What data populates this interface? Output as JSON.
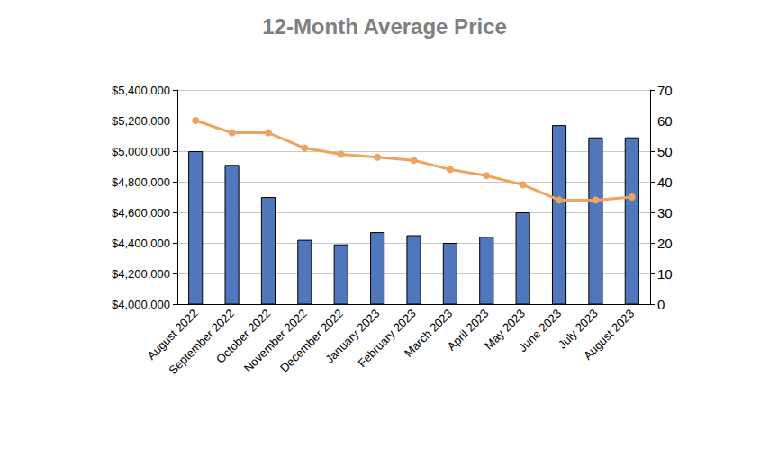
{
  "chart_data": {
    "type": "bar",
    "title": "12-Month Average Price",
    "categories": [
      "August 2022",
      "September 2022",
      "October 2022",
      "November 2022",
      "December 2022",
      "January 2023",
      "February 2023",
      "March 2023",
      "April 2023",
      "May 2023",
      "June 2023",
      "July 2023",
      "August 2023"
    ],
    "series": [
      {
        "type": "bar",
        "color": "#5077bb",
        "values": [
          5000000,
          4910000,
          4700000,
          4420000,
          4390000,
          4470000,
          4450000,
          4400000,
          4440000,
          4600000,
          5170000,
          5090000,
          5090000
        ]
      },
      {
        "type": "line",
        "axis": "y2",
        "color": "#f0a35e",
        "marker": "circle",
        "values": [
          60,
          56,
          56,
          51,
          49,
          48,
          47,
          44,
          42,
          39,
          34,
          34,
          35
        ]
      }
    ],
    "ylim": [
      4000000,
      5400000
    ],
    "yticks": [
      {
        "value": 4000000,
        "label": "$4,000,000"
      },
      {
        "value": 4200000,
        "label": "$4,200,000"
      },
      {
        "value": 4400000,
        "label": "$4,400,000"
      },
      {
        "value": 4600000,
        "label": "$4,600,000"
      },
      {
        "value": 4800000,
        "label": "$4,800,000"
      },
      {
        "value": 5000000,
        "label": "$5,000,000"
      },
      {
        "value": 5200000,
        "label": "$5,200,000"
      },
      {
        "value": 5400000,
        "label": "$5,400,000"
      }
    ],
    "y2lim": [
      0,
      70
    ],
    "y2ticks": [
      0,
      10,
      20,
      30,
      40,
      50,
      60,
      70
    ],
    "grid": true
  }
}
